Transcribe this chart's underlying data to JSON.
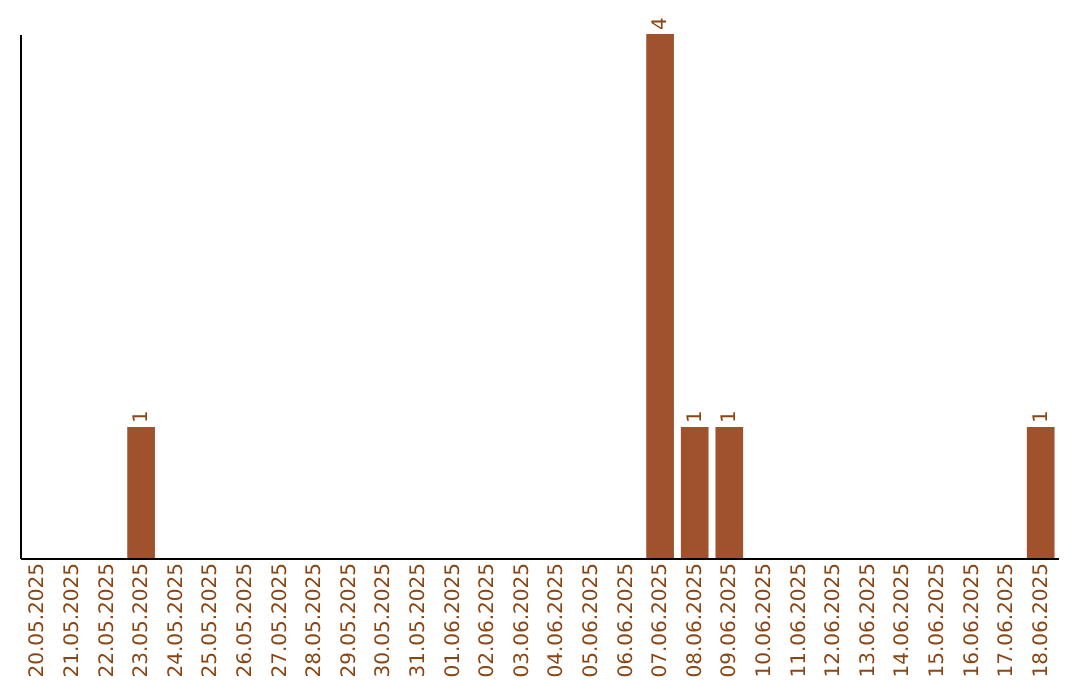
{
  "chart_data": {
    "type": "bar",
    "categories": [
      "20.05.2025",
      "21.05.2025",
      "22.05.2025",
      "23.05.2025",
      "24.05.2025",
      "25.05.2025",
      "26.05.2025",
      "27.05.2025",
      "28.05.2025",
      "29.05.2025",
      "30.05.2025",
      "31.05.2025",
      "01.06.2025",
      "02.06.2025",
      "03.06.2025",
      "04.06.2025",
      "05.06.2025",
      "06.06.2025",
      "07.06.2025",
      "08.06.2025",
      "09.06.2025",
      "10.06.2025",
      "11.06.2025",
      "12.06.2025",
      "13.06.2025",
      "14.06.2025",
      "15.06.2025",
      "16.06.2025",
      "17.06.2025",
      "18.06.2025"
    ],
    "values": [
      0,
      0,
      0,
      1,
      0,
      0,
      0,
      0,
      0,
      0,
      0,
      0,
      0,
      0,
      0,
      0,
      0,
      0,
      4,
      1,
      1,
      0,
      0,
      0,
      0,
      0,
      0,
      0,
      0,
      1
    ],
    "value_labels": [
      null,
      null,
      null,
      "1",
      null,
      null,
      null,
      null,
      null,
      null,
      null,
      null,
      null,
      null,
      null,
      null,
      null,
      null,
      "4",
      "1",
      "1",
      null,
      null,
      null,
      null,
      null,
      null,
      null,
      null,
      "1"
    ],
    "color": "#a0522d",
    "tick_labels": "x"
  }
}
